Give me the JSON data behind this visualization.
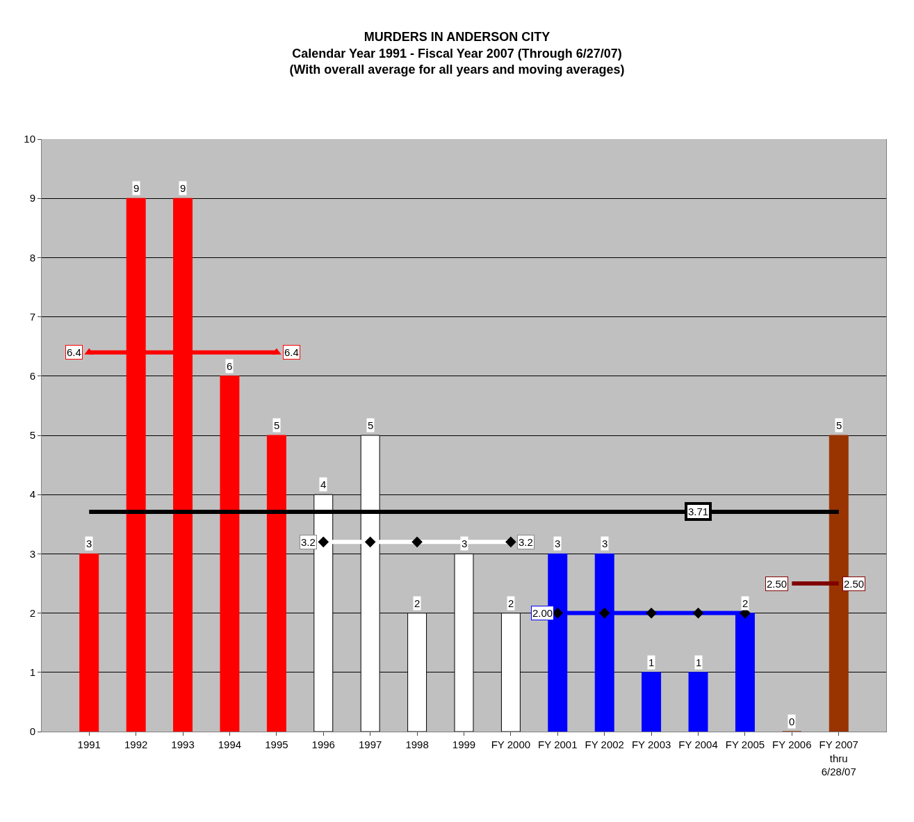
{
  "chart_data": {
    "type": "bar",
    "title": "MURDERS IN ANDERSON CITY",
    "subtitle": "Calendar Year 1991 - Fiscal Year 2007 (Through 6/27/07)\n(With overall average for all years and moving averages)",
    "categories": [
      "1991",
      "1992",
      "1993",
      "1994",
      "1995",
      "1996",
      "1997",
      "1998",
      "1999",
      "FY 2000",
      "FY 2001",
      "FY 2002",
      "FY 2003",
      "FY 2004",
      "FY 2005",
      "FY 2006",
      "FY 2007\nthru\n6/28/07"
    ],
    "ylim": [
      0,
      10
    ],
    "yticks": [
      0,
      1,
      2,
      3,
      4,
      5,
      6,
      7,
      8,
      9,
      10
    ],
    "grid": "y",
    "data_labels": true,
    "series": [
      {
        "values": [
          3,
          9,
          9,
          6,
          5,
          4,
          5,
          2,
          3,
          2,
          3,
          3,
          1,
          1,
          2,
          0,
          5
        ],
        "colors": [
          "#ff0000",
          "#ff0000",
          "#ff0000",
          "#ff0000",
          "#ff0000",
          "#ffffff",
          "#ffffff",
          "#ffffff",
          "#ffffff",
          "#ffffff",
          "#0000ff",
          "#0000ff",
          "#0000ff",
          "#0000ff",
          "#0000ff",
          "#993300",
          "#993300"
        ]
      },
      {
        "type": "line",
        "color": "#000000",
        "marker": "none",
        "values": [
          3.71,
          null,
          null,
          null,
          null,
          null,
          null,
          null,
          null,
          null,
          null,
          null,
          null,
          3.71,
          null,
          null,
          3.71
        ],
        "value_labels": [
          null,
          null,
          null,
          null,
          null,
          null,
          null,
          null,
          null,
          null,
          null,
          null,
          null,
          "3.71",
          null,
          null,
          null
        ]
      },
      {
        "type": "line",
        "color": "#ff0000",
        "marker": "triangle",
        "values": [
          6.4,
          null,
          null,
          null,
          6.4,
          null,
          null,
          null,
          null,
          null,
          null,
          null,
          null,
          null,
          null,
          null,
          null
        ],
        "value_labels": [
          "6.4",
          null,
          null,
          null,
          "6.4",
          null,
          null,
          null,
          null,
          null,
          null,
          null,
          null,
          null,
          null,
          null,
          null
        ]
      },
      {
        "type": "line",
        "color": "#ffffff",
        "marker": "diamond",
        "values": [
          null,
          null,
          null,
          null,
          null,
          3.2,
          3.2,
          3.2,
          null,
          3.2,
          null,
          null,
          null,
          null,
          null,
          null,
          null
        ],
        "value_labels": [
          null,
          null,
          null,
          null,
          null,
          "3.2",
          null,
          null,
          null,
          "3.2",
          null,
          null,
          null,
          null,
          null,
          null,
          null
        ]
      },
      {
        "type": "line",
        "color": "#0000ff",
        "marker": "diamond",
        "values": [
          null,
          null,
          null,
          null,
          null,
          null,
          null,
          null,
          null,
          null,
          2.0,
          2.0,
          2.0,
          2.0,
          2.0,
          null,
          null
        ],
        "value_labels": [
          null,
          null,
          null,
          null,
          null,
          null,
          null,
          null,
          null,
          null,
          "2.00",
          null,
          null,
          null,
          null,
          null,
          null
        ]
      },
      {
        "type": "line",
        "color": "#800000",
        "marker": "none",
        "values": [
          null,
          null,
          null,
          null,
          null,
          null,
          null,
          null,
          null,
          null,
          null,
          null,
          null,
          null,
          null,
          2.5,
          2.5
        ],
        "value_labels": [
          null,
          null,
          null,
          null,
          null,
          null,
          null,
          null,
          null,
          null,
          null,
          null,
          null,
          null,
          null,
          "2.50",
          "2.50"
        ]
      }
    ]
  }
}
